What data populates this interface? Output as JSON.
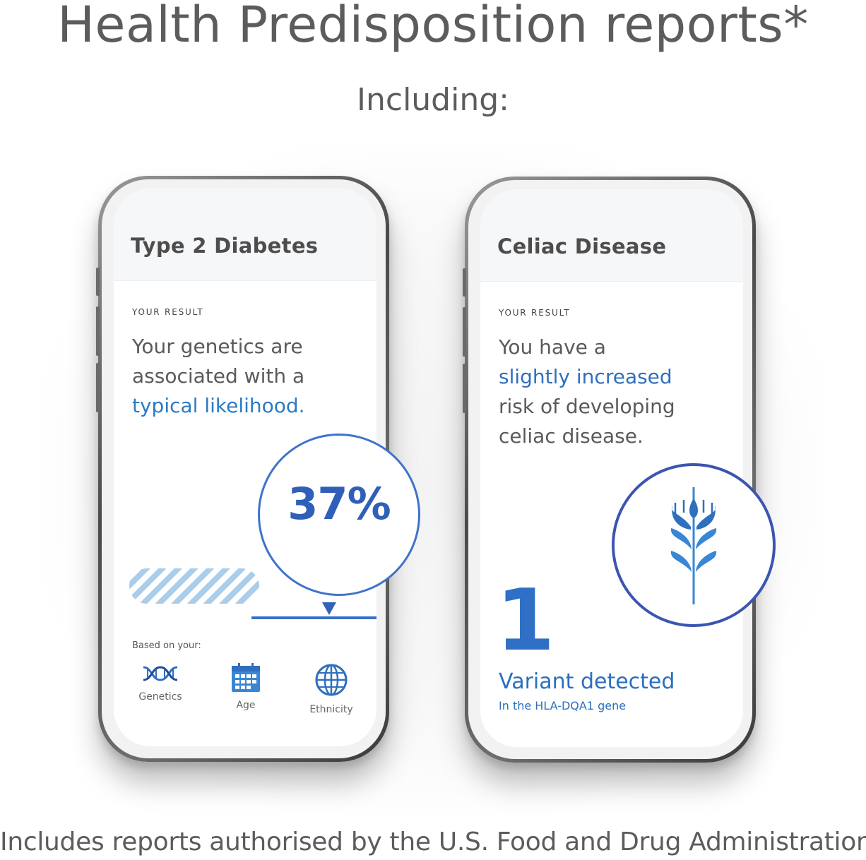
{
  "header": {
    "title": "Health Predisposition reports*",
    "subtitle": "Including:"
  },
  "cards": [
    {
      "title": "Type 2 Diabetes",
      "result_label": "YOUR RESULT",
      "result_text_1": "Your genetics are associated with a",
      "result_highlight": "typical likelihood.",
      "percent": "37%",
      "based_on_label": "Based on your:",
      "factors": [
        {
          "label": "Genetics",
          "icon": "dna-icon"
        },
        {
          "label": "Age",
          "icon": "calendar-icon"
        },
        {
          "label": "Ethnicity",
          "icon": "globe-icon"
        }
      ]
    },
    {
      "title": "Celiac Disease",
      "result_label": "YOUR RESULT",
      "result_text_1": "You have a",
      "result_highlight": "slightly increased",
      "result_text_2": "risk of developing celiac disease.",
      "variant_count": "1",
      "variant_title": "Variant detected",
      "variant_gene": "In the HLA-DQA1 gene",
      "icon": "wheat-icon"
    }
  ],
  "footer": {
    "note": "Includes reports authorised by the U.S. Food and Drug Administration"
  },
  "colors": {
    "accent_blue": "#2b7bc4",
    "dark_blue": "#3b55b0",
    "text_gray": "#5c5c5c"
  }
}
